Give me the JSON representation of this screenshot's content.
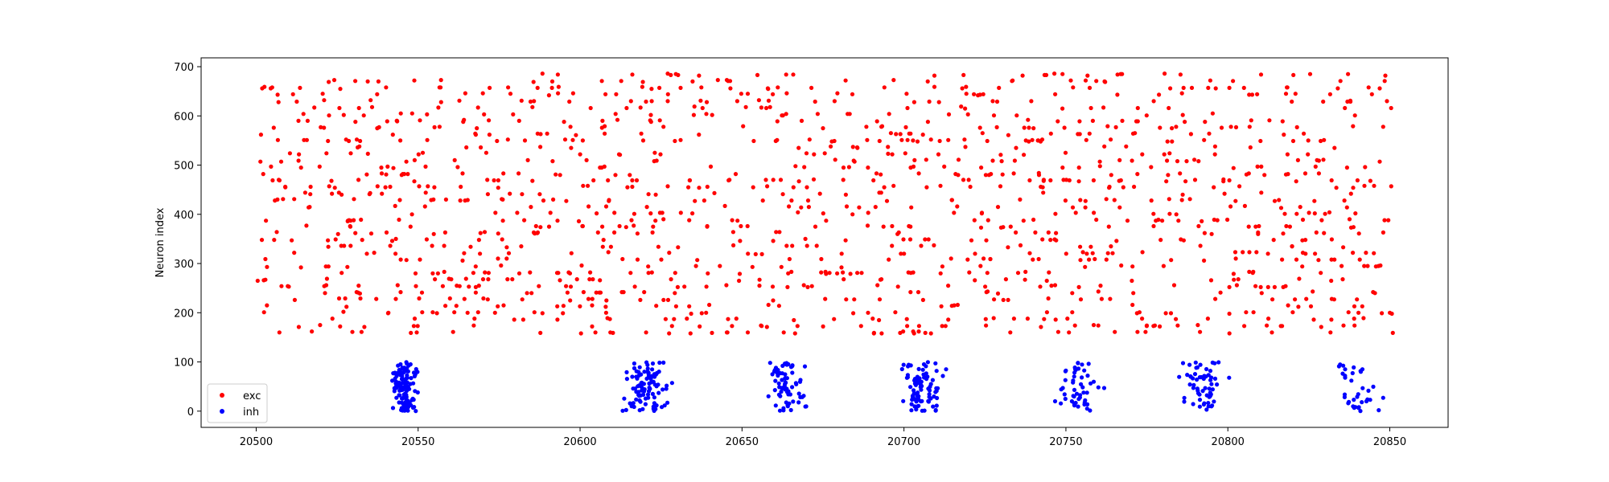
{
  "chart_data": {
    "type": "scatter",
    "title": "",
    "xlabel": "",
    "ylabel": "Neuron index",
    "xlim": [
      20483,
      20868
    ],
    "ylim": [
      -33,
      718
    ],
    "xticks": [
      20500,
      20550,
      20600,
      20650,
      20700,
      20750,
      20800,
      20850
    ],
    "yticks": [
      0,
      100,
      200,
      300,
      400,
      500,
      600,
      700
    ],
    "grid": false,
    "legend": {
      "position": "lower-left",
      "entries": [
        "exc",
        "inh"
      ]
    },
    "series": [
      {
        "name": "exc",
        "color": "#ff0000",
        "x_range": [
          20500,
          20851
        ],
        "y_range": [
          160,
          684
        ],
        "points": 1400,
        "seed": 12345
      },
      {
        "name": "inh",
        "color": "#0000ff",
        "bursts": [
          {
            "center": 20546,
            "spread": 3.5,
            "count": 130
          },
          {
            "center": 20620,
            "spread": 6.0,
            "count": 95
          },
          {
            "center": 20664,
            "spread": 5.0,
            "count": 70
          },
          {
            "center": 20706,
            "spread": 5.0,
            "count": 85
          },
          {
            "center": 20754,
            "spread": 6.0,
            "count": 50
          },
          {
            "center": 20792,
            "spread": 6.0,
            "count": 60
          },
          {
            "center": 20840,
            "spread": 6.0,
            "count": 35
          }
        ],
        "y_range": [
          0,
          100
        ],
        "seed": 777
      }
    ]
  }
}
